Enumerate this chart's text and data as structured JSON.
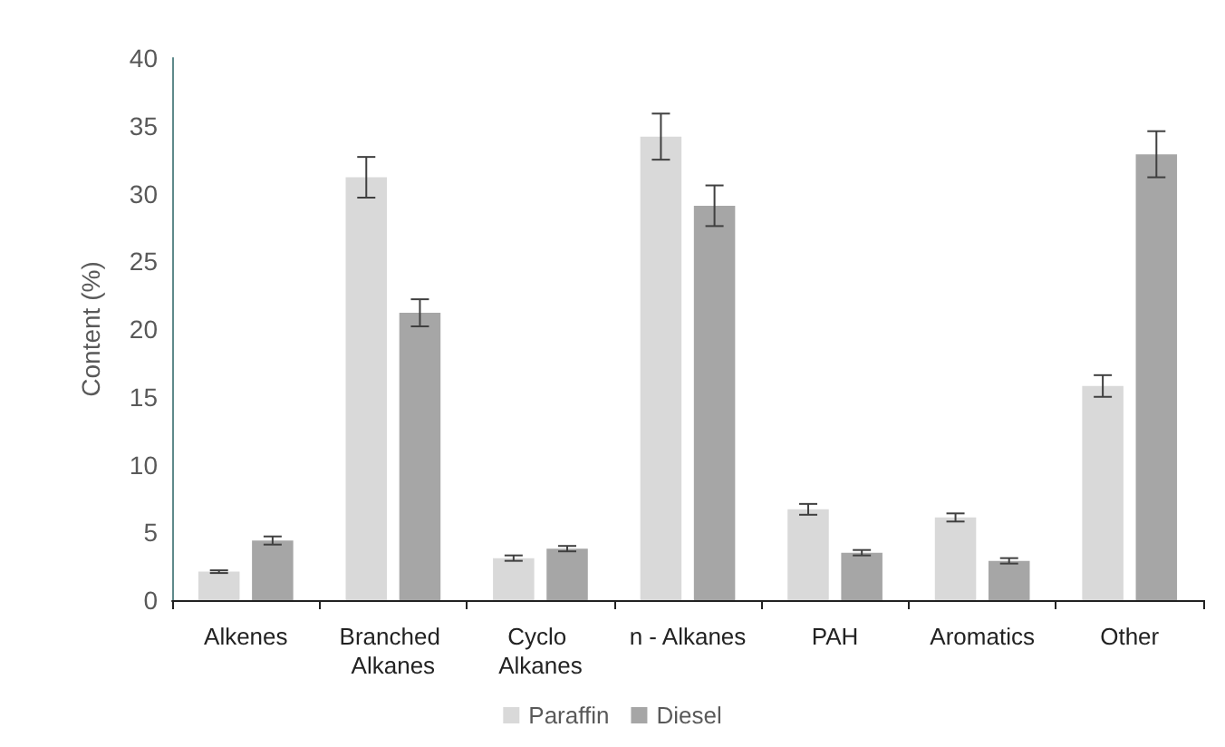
{
  "chart_data": {
    "type": "bar",
    "ylabel": "Content (%)",
    "categories": [
      "Alkenes",
      "Branched Alkanes",
      "Cyclo Alkanes",
      "n - Alkanes",
      "PAH",
      "Aromatics",
      "Other"
    ],
    "series": [
      {
        "name": "Paraffin",
        "color": "#d9d9d9",
        "values": [
          2.1,
          31.2,
          3.1,
          34.2,
          6.7,
          6.1,
          15.8
        ],
        "errors": [
          0.1,
          1.5,
          0.2,
          1.7,
          0.4,
          0.3,
          0.8
        ]
      },
      {
        "name": "Diesel",
        "color": "#a6a6a6",
        "values": [
          4.4,
          21.2,
          3.8,
          29.1,
          3.5,
          2.9,
          32.9
        ],
        "errors": [
          0.3,
          1.0,
          0.2,
          1.5,
          0.2,
          0.2,
          1.7
        ]
      }
    ],
    "ylim": [
      0,
      40
    ],
    "yticks": [
      0,
      5,
      10,
      15,
      20,
      25,
      30,
      35,
      40
    ],
    "grid": false,
    "legend": "bottom"
  }
}
